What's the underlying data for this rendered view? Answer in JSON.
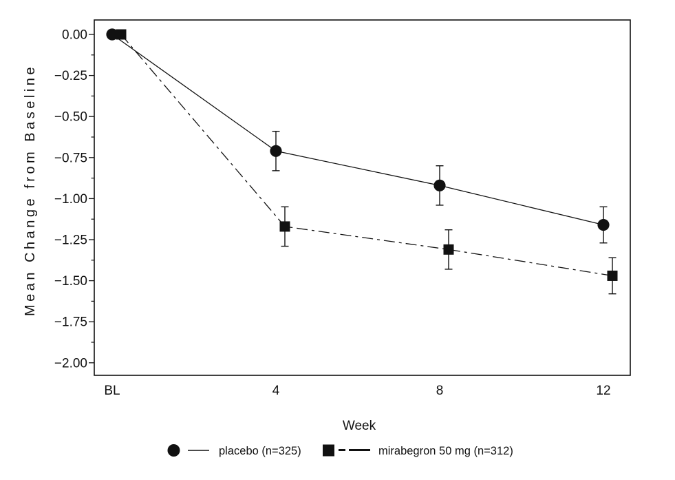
{
  "figure": {
    "background": "#ffffff",
    "ink_color": "#111111",
    "title": ""
  },
  "chart_data": {
    "type": "line",
    "title": "",
    "xlabel": "Week",
    "ylabel": "Mean Change from Baseline",
    "grid": false,
    "x_axis": {
      "label": "Week",
      "tick_labels": [
        "BL",
        "4",
        "8",
        "12"
      ],
      "values": [
        0,
        4,
        8,
        12
      ]
    },
    "y_axis": {
      "label": "Mean Change from Baseline",
      "tick_labels": [
        "0.00",
        "−0.25",
        "−0.50",
        "−0.75",
        "−1.00",
        "−1.25",
        "−1.50",
        "−1.75",
        "−2.00"
      ],
      "major_ticks": [
        0,
        -0.25,
        -0.5,
        -0.75,
        -1.0,
        -1.25,
        -1.5,
        -1.75,
        -2.0
      ],
      "minor_tick_step": 0.125,
      "range_shown": [
        0.1,
        -2.08
      ]
    },
    "legend": {
      "position": "bottom-center"
    },
    "series": [
      {
        "id": "placebo",
        "name": "placebo (n=325)",
        "marker": "filled-circle",
        "line_style": "solid",
        "x": [
          0,
          4,
          8,
          12
        ],
        "values": [
          0.0,
          -0.71,
          -0.92,
          -1.16
        ],
        "error": [
          null,
          0.12,
          0.12,
          0.11
        ]
      },
      {
        "id": "mirabegron-50mg",
        "name": "mirabegron 50 mg (n=312)",
        "marker": "filled-square",
        "line_style": "dash-dot",
        "x": [
          0,
          4,
          8,
          12
        ],
        "values": [
          0.0,
          -1.17,
          -1.31,
          -1.47
        ],
        "error": [
          null,
          0.12,
          0.12,
          0.11
        ]
      }
    ]
  }
}
